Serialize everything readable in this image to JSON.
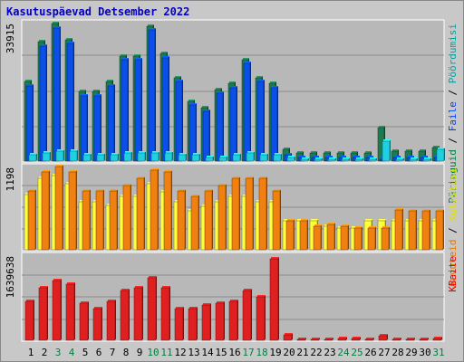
{
  "chart_data": {
    "type": "bar",
    "title": "Kasutuspäevad Detsember 2022",
    "categories": [
      "1",
      "2",
      "3",
      "4",
      "5",
      "6",
      "7",
      "8",
      "9",
      "10",
      "11",
      "12",
      "13",
      "14",
      "15",
      "16",
      "17",
      "18",
      "19",
      "20",
      "21",
      "22",
      "23",
      "24",
      "25",
      "26",
      "27",
      "28",
      "29",
      "30",
      "31"
    ],
    "weekend_days": [
      "3",
      "4",
      "10",
      "11",
      "17",
      "18",
      "24",
      "25",
      "31"
    ],
    "colors": {
      "weekday_label": "#000000",
      "weekend_label": "#008040",
      "panel_bg": "#b8b8b8",
      "gridline": "#8c8c8c"
    },
    "panels": [
      {
        "id": "top",
        "max_label": "33915",
        "ylim": [
          0,
          33915
        ],
        "axis_labels": [
          {
            "text": "Päringuid",
            "color": "#008040"
          },
          {
            "text": " / ",
            "color": "#000000"
          },
          {
            "text": "Faile",
            "color": "#0040ff"
          },
          {
            "text": " / ",
            "color": "#000000"
          },
          {
            "text": "Pöördumisi",
            "color": "#00a0a0"
          }
        ],
        "series": [
          {
            "name": "Päringuid",
            "color": "#1f7a50",
            "values": [
              20000,
              30000,
              34500,
              30500,
              17500,
              17500,
              20000,
              26500,
              26500,
              34000,
              27000,
              21000,
              15000,
              13500,
              18000,
              19500,
              25500,
              21000,
              19500,
              3000,
              2000,
              2000,
              2000,
              2000,
              2000,
              2000,
              8500,
              2500,
              2500,
              2500,
              3500
            ]
          },
          {
            "name": "Faile",
            "color": "#0a50e8",
            "values": [
              19000,
              29000,
              33500,
              29500,
              16500,
              16500,
              19000,
              25500,
              25500,
              33000,
              26000,
              20000,
              14000,
              12500,
              17000,
              18500,
              24500,
              20000,
              18500,
              1500,
              1000,
              1000,
              1000,
              1000,
              1000,
              1000,
              500,
              1000,
              1000,
              1000,
              1000
            ]
          },
          {
            "name": "Pöördumisi",
            "color": "#20d0e0",
            "values": [
              1500,
              2000,
              2500,
              2500,
              1500,
              1500,
              1500,
              2000,
              2000,
              2000,
              2000,
              1500,
              1500,
              1000,
              1000,
              1500,
              2000,
              1500,
              1500,
              1000,
              500,
              500,
              500,
              500,
              500,
              500,
              5000,
              500,
              500,
              500,
              3000
            ]
          }
        ]
      },
      {
        "id": "middle",
        "max_label": "1198",
        "ylim": [
          0,
          1198
        ],
        "axis_labels": [
          {
            "text": "Arvuteid",
            "color": "#e07800"
          },
          {
            "text": " / ",
            "color": "#000000"
          },
          {
            "text": "Külastusi",
            "color": "#e0e000"
          }
        ],
        "series": [
          {
            "name": "Külastusi",
            "color": "#ffff40",
            "values": [
              830,
              1070,
              1120,
              1000,
              720,
              720,
              670,
              800,
              800,
              1000,
              870,
              720,
              580,
              660,
              720,
              800,
              800,
              720,
              720,
              430,
              430,
              430,
              360,
              330,
              330,
              430,
              430,
              430,
              430,
              430,
              430
            ]
          },
          {
            "name": "Arvuteid",
            "color": "#f08010",
            "values": [
              880,
              1170,
              1250,
              1170,
              880,
              880,
              880,
              960,
              1070,
              1200,
              1170,
              880,
              800,
              880,
              960,
              1070,
              1070,
              1070,
              880,
              430,
              430,
              360,
              380,
              360,
              330,
              330,
              330,
              600,
              580,
              580,
              580
            ]
          }
        ]
      },
      {
        "id": "bottom",
        "max_label": "1639638",
        "ylim": [
          0,
          1639638
        ],
        "axis_labels": [
          {
            "text": "KBaite",
            "color": "#e00000"
          }
        ],
        "series": [
          {
            "name": "KBaite",
            "color": "#e02020",
            "values": [
              780000,
              1060000,
              1200000,
              1130000,
              750000,
              640000,
              780000,
              1000000,
              1060000,
              1260000,
              1060000,
              640000,
              640000,
              710000,
              750000,
              780000,
              1000000,
              880000,
              1640000,
              110000,
              15000,
              15000,
              15000,
              40000,
              30000,
              15000,
              90000,
              15000,
              15000,
              15000,
              40000
            ]
          }
        ]
      }
    ]
  }
}
